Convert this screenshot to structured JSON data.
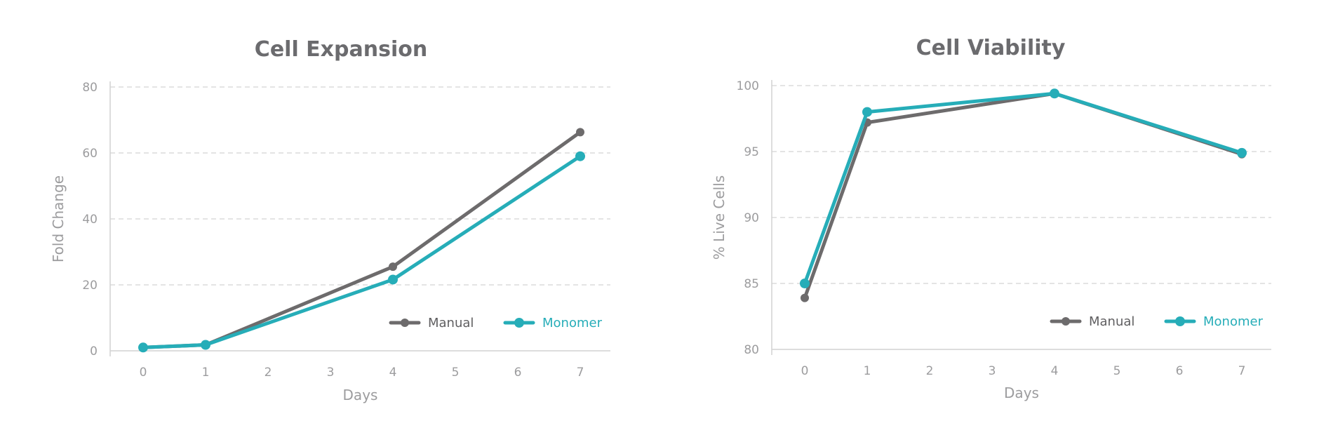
{
  "colors": {
    "manual": "#6d6b6c",
    "monomer": "#26adb8"
  },
  "chart_data": [
    {
      "type": "line",
      "title": "Cell Expansion",
      "xlabel": "Days",
      "ylabel": "Fold Change",
      "xlim": [
        0,
        7
      ],
      "ylim": [
        0,
        80
      ],
      "xticks": [
        "0",
        "1",
        "2",
        "3",
        "4",
        "5",
        "6",
        "7"
      ],
      "yticks": [
        "0",
        "20",
        "40",
        "60",
        "80"
      ],
      "grid": true,
      "legend_position": "bottom-right",
      "series": [
        {
          "name": "Manual",
          "x": [
            0,
            1,
            4,
            7
          ],
          "values": [
            1,
            1.8,
            25.5,
            66.3
          ]
        },
        {
          "name": "Monomer",
          "x": [
            0,
            1,
            4,
            7
          ],
          "values": [
            1,
            1.8,
            21.6,
            59
          ]
        }
      ]
    },
    {
      "type": "line",
      "title": "Cell Viability",
      "xlabel": "Days",
      "ylabel": "% Live Cells",
      "xlim": [
        0,
        7
      ],
      "ylim": [
        80,
        100
      ],
      "xticks": [
        "0",
        "1",
        "2",
        "3",
        "4",
        "5",
        "6",
        "7"
      ],
      "yticks": [
        "80",
        "85",
        "90",
        "95",
        "100"
      ],
      "grid": true,
      "legend_position": "bottom-right",
      "series": [
        {
          "name": "Manual",
          "x": [
            0,
            1,
            4,
            7
          ],
          "values": [
            83.9,
            97.2,
            99.4,
            94.8
          ]
        },
        {
          "name": "Monomer",
          "x": [
            0,
            1,
            4,
            7
          ],
          "values": [
            85,
            98,
            99.4,
            94.9
          ]
        }
      ]
    }
  ]
}
